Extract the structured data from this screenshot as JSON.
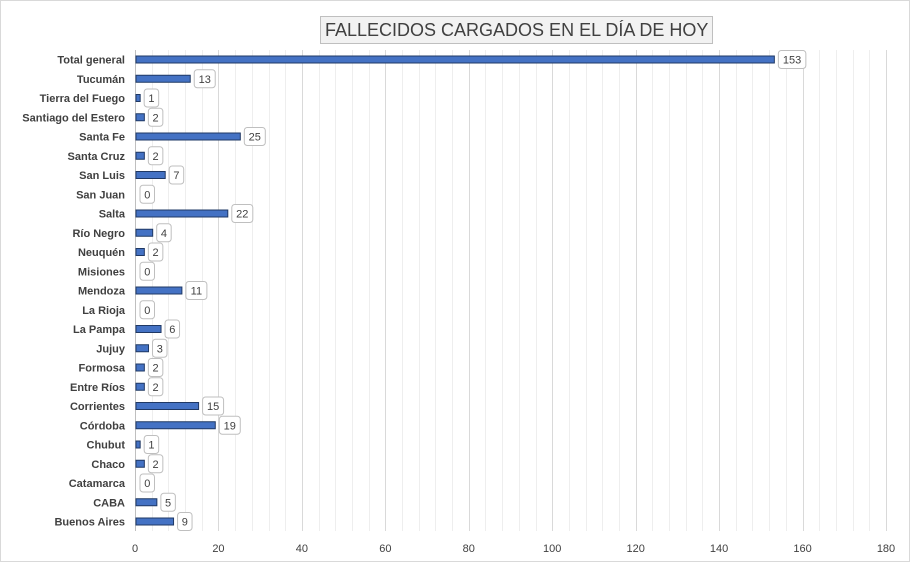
{
  "chart_data": {
    "type": "bar",
    "orientation": "horizontal",
    "title": "FALLECIDOS CARGADOS EN EL DÍA DE HOY",
    "categories": [
      "Total general",
      "Tucumán",
      "Tierra del Fuego",
      "Santiago del Estero",
      "Santa Fe",
      "Santa Cruz",
      "San Luis",
      "San Juan",
      "Salta",
      "Río Negro",
      "Neuquén",
      "Misiones",
      "Mendoza",
      "La Rioja",
      "La Pampa",
      "Jujuy",
      "Formosa",
      "Entre Ríos",
      "Corrientes",
      "Córdoba",
      "Chubut",
      "Chaco",
      "Catamarca",
      "CABA",
      "Buenos Aires"
    ],
    "values": [
      153,
      13,
      1,
      2,
      25,
      2,
      7,
      0,
      22,
      4,
      2,
      0,
      11,
      0,
      6,
      3,
      2,
      2,
      15,
      19,
      1,
      2,
      0,
      5,
      9
    ],
    "xlim": [
      0,
      180
    ],
    "xticks": [
      0,
      20,
      40,
      60,
      80,
      100,
      120,
      140,
      160,
      180
    ],
    "xlabel": "",
    "ylabel": "",
    "grid": "vertical",
    "legend": "none",
    "data_labels": true,
    "colors": {
      "bar_fill": "#4472c4",
      "bar_stroke": "#1f3864",
      "grid": "#d9d9d9",
      "text": "#404040",
      "label_border": "#bfbfbf"
    }
  }
}
